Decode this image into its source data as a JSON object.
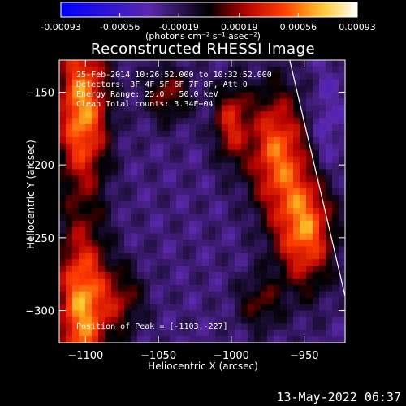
{
  "chart_data": {
    "type": "heatmap",
    "title": "Reconstructed RHESSI Image",
    "xlabel": "Heliocentric X (arcsec)",
    "ylabel": "Heliocentric Y (arcsec)",
    "xlim": [
      -1118,
      -922
    ],
    "ylim": [
      -322,
      -128
    ],
    "x_ticks": [
      -1100,
      -1050,
      -1000,
      -950
    ],
    "x_tick_labels": [
      "−1100",
      "−1050",
      "−1000",
      "−950"
    ],
    "y_ticks": [
      -150,
      -200,
      -250,
      -300
    ],
    "y_tick_labels": [
      "−150",
      "−200",
      "−250",
      "−300"
    ],
    "colorbar": {
      "min": -0.00093,
      "max": 0.00093,
      "ticks": [
        -0.00093,
        -0.00056,
        -0.00019,
        0.00019,
        0.00056,
        0.00093
      ],
      "tick_labels": [
        "-0.00093",
        "-0.00056",
        "-0.00019",
        "0.00019",
        "0.00056",
        "0.00093"
      ],
      "units": "(photons cm⁻² s⁻¹ asec⁻²)"
    },
    "annotations": [
      "25-Feb-2014 10:26:52.000 to 10:32:52.000",
      "Detectors: 3F 4F 5F 6F 7F 8F, Att 0",
      "Energy Range: 25.0 - 50.0 keV",
      "Clean     Total counts: 3.34E+04"
    ],
    "peak_label": "Position of Peak = [-1103,-227]",
    "peak": [
      -1103,
      -227
    ],
    "limb_line": [
      [
        -960,
        -128
      ],
      [
        -922,
        -290
      ]
    ],
    "grid": false
  },
  "footer": {
    "timestamp": "13-May-2022 06:37"
  }
}
